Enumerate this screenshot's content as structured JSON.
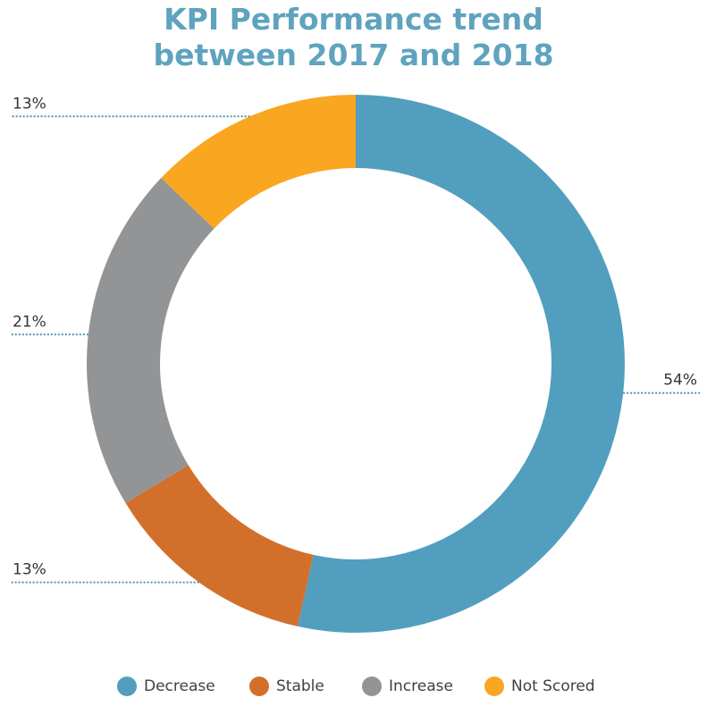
{
  "chart_data": {
    "type": "pie",
    "title_lines": [
      "KPI Performance trend",
      "between 2017 and 2018"
    ],
    "categories": [
      "Decrease",
      "Stable",
      "Increase",
      "Not Scored"
    ],
    "values": [
      54,
      13,
      21,
      13
    ],
    "labels": [
      "54%",
      "13%",
      "21%",
      "13%"
    ],
    "colors": [
      "#529ebf",
      "#d2702b",
      "#939496",
      "#f9a621"
    ],
    "legend_position": "bottom"
  }
}
